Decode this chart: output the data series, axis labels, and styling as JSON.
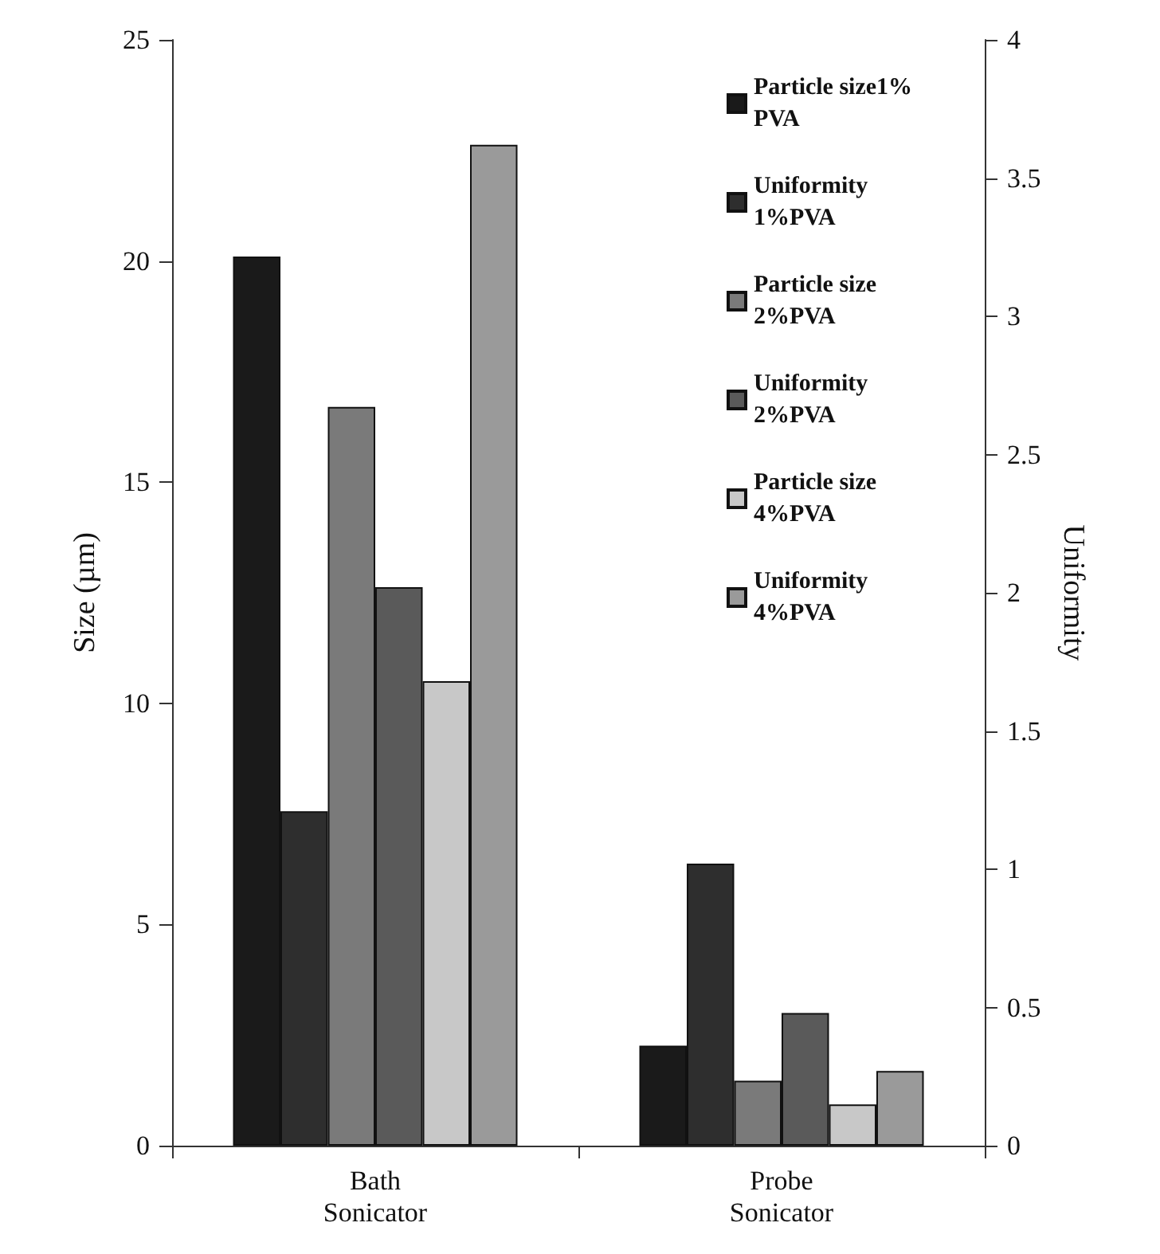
{
  "chart_data": {
    "type": "bar",
    "ylabel": "Size (µm)",
    "y2label": "Uniformity",
    "categories": [
      "Bath\nSonicator",
      "Probe\nSonicator"
    ],
    "series": [
      {
        "name": "Particle size1% PVA",
        "color": "#1a1a1a",
        "values": [
          20.1,
          2.26
        ]
      },
      {
        "name": "Uniformity 1%PVA",
        "color": "#2e2e2e",
        "values": [
          1.21,
          1.02
        ],
        "axis": "y2"
      },
      {
        "name": "Particle size 2%PVA",
        "color": "#7a7a7a",
        "values": [
          16.7,
          1.47
        ]
      },
      {
        "name": "Uniformity 2%PVA",
        "color": "#5a5a5a",
        "values": [
          2.02,
          0.48
        ],
        "axis": "y2"
      },
      {
        "name": "Particle size 4%PVA",
        "color": "#c8c8c8",
        "values": [
          10.5,
          0.93
        ]
      },
      {
        "name": "Uniformity 4%PVA",
        "color": "#9a9a9a",
        "values": [
          3.62,
          0.27
        ],
        "axis": "y2"
      }
    ],
    "ylim": [
      0,
      25
    ],
    "yticks": [
      0,
      5,
      10,
      15,
      20,
      25
    ],
    "y2lim": [
      0,
      4
    ],
    "y2ticks": [
      0,
      0.5,
      1,
      1.5,
      2,
      2.5,
      3,
      3.5,
      4
    ],
    "grid": false,
    "legend": "top right"
  }
}
